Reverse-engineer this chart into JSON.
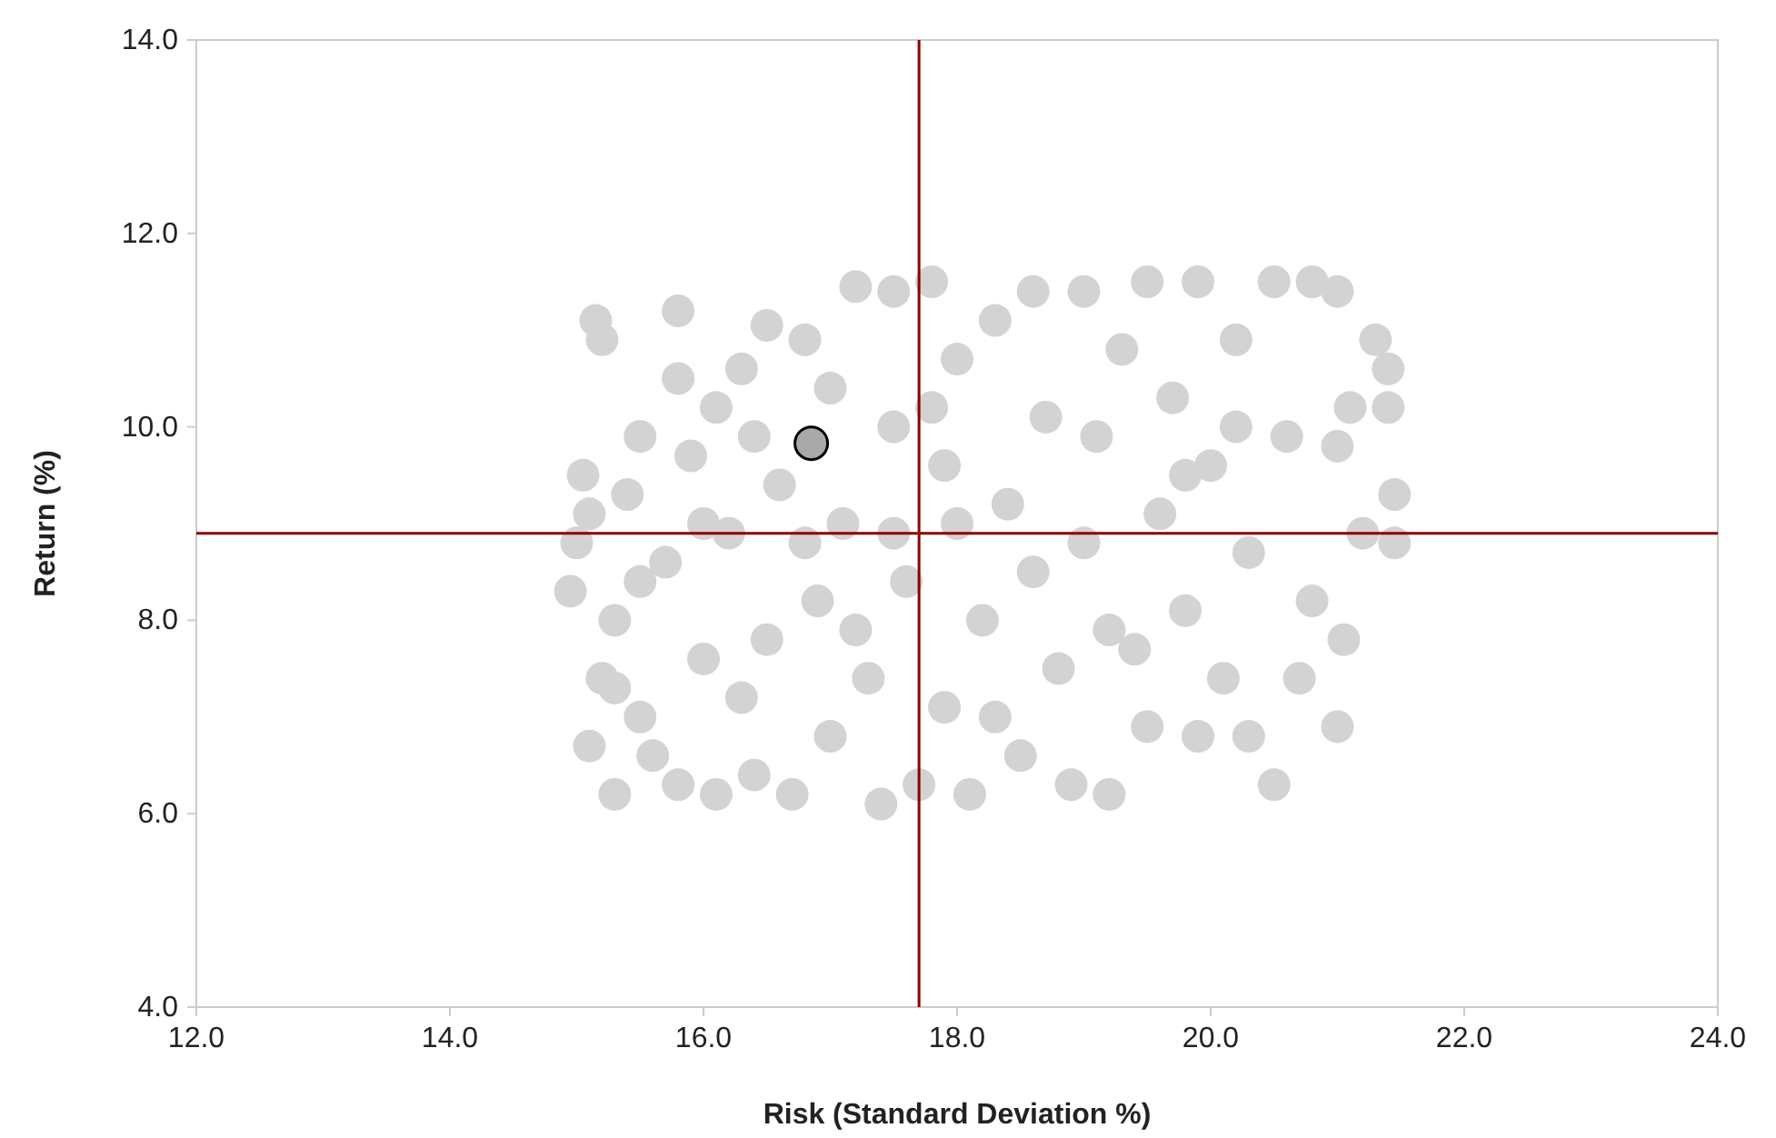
{
  "chart_data": {
    "type": "scatter",
    "xlabel": "Risk (Standard Deviation %)",
    "ylabel": "Return (%)",
    "xlim": [
      12,
      24
    ],
    "xticks": [
      {
        "value": 12,
        "label": "12.0"
      },
      {
        "value": 14,
        "label": "14.0"
      },
      {
        "value": 16,
        "label": "16.0"
      },
      {
        "value": 18,
        "label": "18.0"
      },
      {
        "value": 20,
        "label": "20.0"
      },
      {
        "value": 22,
        "label": "22.0"
      },
      {
        "value": 24,
        "label": "24.0"
      }
    ],
    "ylim": [
      4,
      14
    ],
    "yticks": [
      {
        "value": 4,
        "label": "4.0"
      },
      {
        "value": 6,
        "label": "6.0"
      },
      {
        "value": 8,
        "label": "8.0"
      },
      {
        "value": 10,
        "label": "10.0"
      },
      {
        "value": 12,
        "label": "12.0"
      },
      {
        "value": 14,
        "label": "14.0"
      }
    ],
    "grid": false,
    "marker": "circle",
    "ref_lines": [
      {
        "axis": "x",
        "value": 17.7,
        "color": "#8b0000"
      },
      {
        "axis": "y",
        "value": 8.9,
        "color": "#8b0000"
      }
    ],
    "series": [
      {
        "color": "#d3d3d3",
        "x": [
          14.95,
          15.0,
          15.05,
          15.1,
          15.1,
          15.2,
          15.15,
          15.2,
          15.3,
          15.3,
          15.4,
          15.5,
          15.5,
          15.6,
          15.7,
          15.8,
          15.8,
          15.8,
          15.9,
          16.0,
          16.1,
          16.1,
          16.2,
          16.3,
          16.4,
          16.5,
          16.5,
          16.6,
          16.7,
          16.8,
          16.9,
          17.0,
          17.0,
          17.1,
          17.2,
          17.3,
          17.4,
          17.5,
          17.5,
          17.6,
          17.7,
          17.8,
          17.9,
          17.9,
          18.0,
          18.1,
          18.2,
          18.3,
          18.4,
          18.5,
          18.6,
          18.7,
          18.8,
          18.9,
          19.0,
          19.0,
          19.1,
          19.2,
          19.3,
          19.4,
          19.5,
          19.5,
          19.6,
          19.7,
          19.8,
          19.9,
          19.9,
          20.0,
          20.1,
          20.2,
          20.3,
          20.3,
          20.5,
          20.5,
          20.6,
          20.7,
          20.8,
          20.8,
          21.0,
          21.0,
          21.0,
          21.05,
          21.1,
          21.2,
          21.3,
          21.4,
          21.45,
          21.45,
          21.4,
          15.5,
          16.0,
          16.3,
          16.8,
          17.2,
          17.5,
          18.0,
          18.3,
          18.6,
          19.2,
          19.8,
          20.2,
          17.8,
          16.4,
          15.3
        ],
        "values": [
          8.3,
          8.8,
          9.5,
          9.1,
          6.7,
          7.4,
          11.1,
          10.9,
          6.2,
          8.0,
          9.3,
          7.0,
          9.9,
          6.6,
          8.6,
          11.2,
          10.5,
          6.3,
          9.7,
          7.6,
          6.2,
          10.2,
          8.9,
          10.6,
          6.4,
          11.05,
          7.8,
          9.4,
          6.2,
          10.9,
          8.2,
          10.4,
          6.8,
          9.0,
          11.45,
          7.4,
          6.1,
          11.4,
          10.0,
          8.4,
          6.3,
          11.5,
          9.6,
          7.1,
          10.7,
          6.2,
          8.0,
          11.1,
          9.2,
          6.6,
          11.4,
          10.1,
          7.5,
          6.3,
          11.4,
          8.8,
          9.9,
          6.2,
          10.8,
          7.7,
          11.5,
          6.9,
          9.1,
          10.3,
          8.1,
          11.5,
          6.8,
          9.6,
          7.4,
          10.9,
          6.8,
          8.7,
          11.5,
          6.3,
          9.9,
          7.4,
          11.5,
          8.2,
          6.9,
          11.4,
          9.8,
          7.8,
          10.2,
          8.9,
          10.9,
          10.6,
          9.3,
          8.8,
          10.2,
          8.4,
          9.0,
          7.2,
          8.8,
          7.9,
          8.9,
          9.0,
          7.0,
          8.5,
          7.9,
          9.5,
          10.0,
          10.2,
          9.9,
          7.3
        ]
      },
      {
        "color": "#a9a9a9",
        "x": [
          16.85
        ],
        "values": [
          9.83
        ]
      }
    ]
  }
}
